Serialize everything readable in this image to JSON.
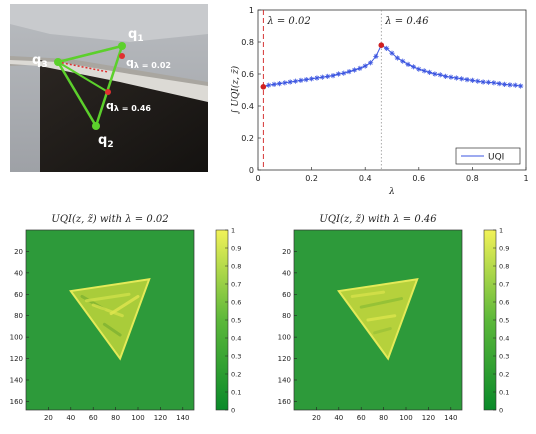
{
  "photo": {
    "labels": {
      "q1": "q",
      "q1_sub": "1",
      "q2": "q",
      "q2_sub": "2",
      "q3": "q",
      "q3_sub": "3",
      "qa": "q",
      "qa_sub": "λ = 0.02",
      "qb": "q",
      "qb_sub": "λ = 0.46"
    }
  },
  "chart_data": [
    {
      "type": "line",
      "xlabel": "λ",
      "ylabel": "∫ UQI(z, z̃)",
      "xlim": [
        0,
        1
      ],
      "ylim": [
        0,
        1
      ],
      "xticks": [
        "0",
        "0.2",
        "0.4",
        "0.6",
        "0.8",
        "1"
      ],
      "yticks": [
        "0",
        "0.2",
        "0.4",
        "0.6",
        "0.8",
        "1"
      ],
      "annotations": [
        "λ = 0.02",
        "λ = 0.46"
      ],
      "markers": [
        {
          "x": 0.02,
          "y": 0.52,
          "color": "#d02020"
        },
        {
          "x": 0.46,
          "y": 0.78,
          "color": "#d02020"
        }
      ],
      "legend": "UQI",
      "legend_position": "bottom-right",
      "series": [
        {
          "name": "UQI",
          "color": "#3b55e0",
          "x": [
            0.02,
            0.04,
            0.06,
            0.08,
            0.1,
            0.12,
            0.14,
            0.16,
            0.18,
            0.2,
            0.22,
            0.24,
            0.26,
            0.28,
            0.3,
            0.32,
            0.34,
            0.36,
            0.38,
            0.4,
            0.42,
            0.44,
            0.46,
            0.48,
            0.5,
            0.52,
            0.54,
            0.56,
            0.58,
            0.6,
            0.62,
            0.64,
            0.66,
            0.68,
            0.7,
            0.72,
            0.74,
            0.76,
            0.78,
            0.8,
            0.82,
            0.84,
            0.86,
            0.88,
            0.9,
            0.92,
            0.94,
            0.96,
            0.98
          ],
          "y": [
            0.52,
            0.53,
            0.535,
            0.54,
            0.545,
            0.55,
            0.555,
            0.56,
            0.565,
            0.57,
            0.575,
            0.58,
            0.585,
            0.59,
            0.6,
            0.605,
            0.615,
            0.625,
            0.635,
            0.65,
            0.67,
            0.71,
            0.78,
            0.76,
            0.73,
            0.7,
            0.68,
            0.66,
            0.645,
            0.63,
            0.62,
            0.61,
            0.6,
            0.595,
            0.585,
            0.58,
            0.575,
            0.57,
            0.565,
            0.56,
            0.555,
            0.55,
            0.548,
            0.545,
            0.54,
            0.535,
            0.532,
            0.53,
            0.525
          ]
        }
      ]
    },
    {
      "type": "heatmap",
      "title": "UQI(z, z̃) with λ = 0.02",
      "xticks": [
        "20",
        "40",
        "60",
        "80",
        "100",
        "120",
        "140"
      ],
      "yticks": [
        "20",
        "40",
        "60",
        "80",
        "100",
        "120",
        "140",
        "160"
      ],
      "colorbar_ticks": [
        "0",
        "0.1",
        "0.2",
        "0.3",
        "0.4",
        "0.5",
        "0.6",
        "0.7",
        "0.8",
        "0.9",
        "1"
      ]
    },
    {
      "type": "heatmap",
      "title": "UQI(z, z̃) with λ = 0.46",
      "xticks": [
        "20",
        "40",
        "60",
        "80",
        "100",
        "120",
        "140"
      ],
      "yticks": [
        "20",
        "40",
        "60",
        "80",
        "100",
        "120",
        "140",
        "160"
      ],
      "colorbar_ticks": [
        "0",
        "0.1",
        "0.2",
        "0.3",
        "0.4",
        "0.5",
        "0.6",
        "0.7",
        "0.8",
        "0.9",
        "1"
      ]
    }
  ]
}
